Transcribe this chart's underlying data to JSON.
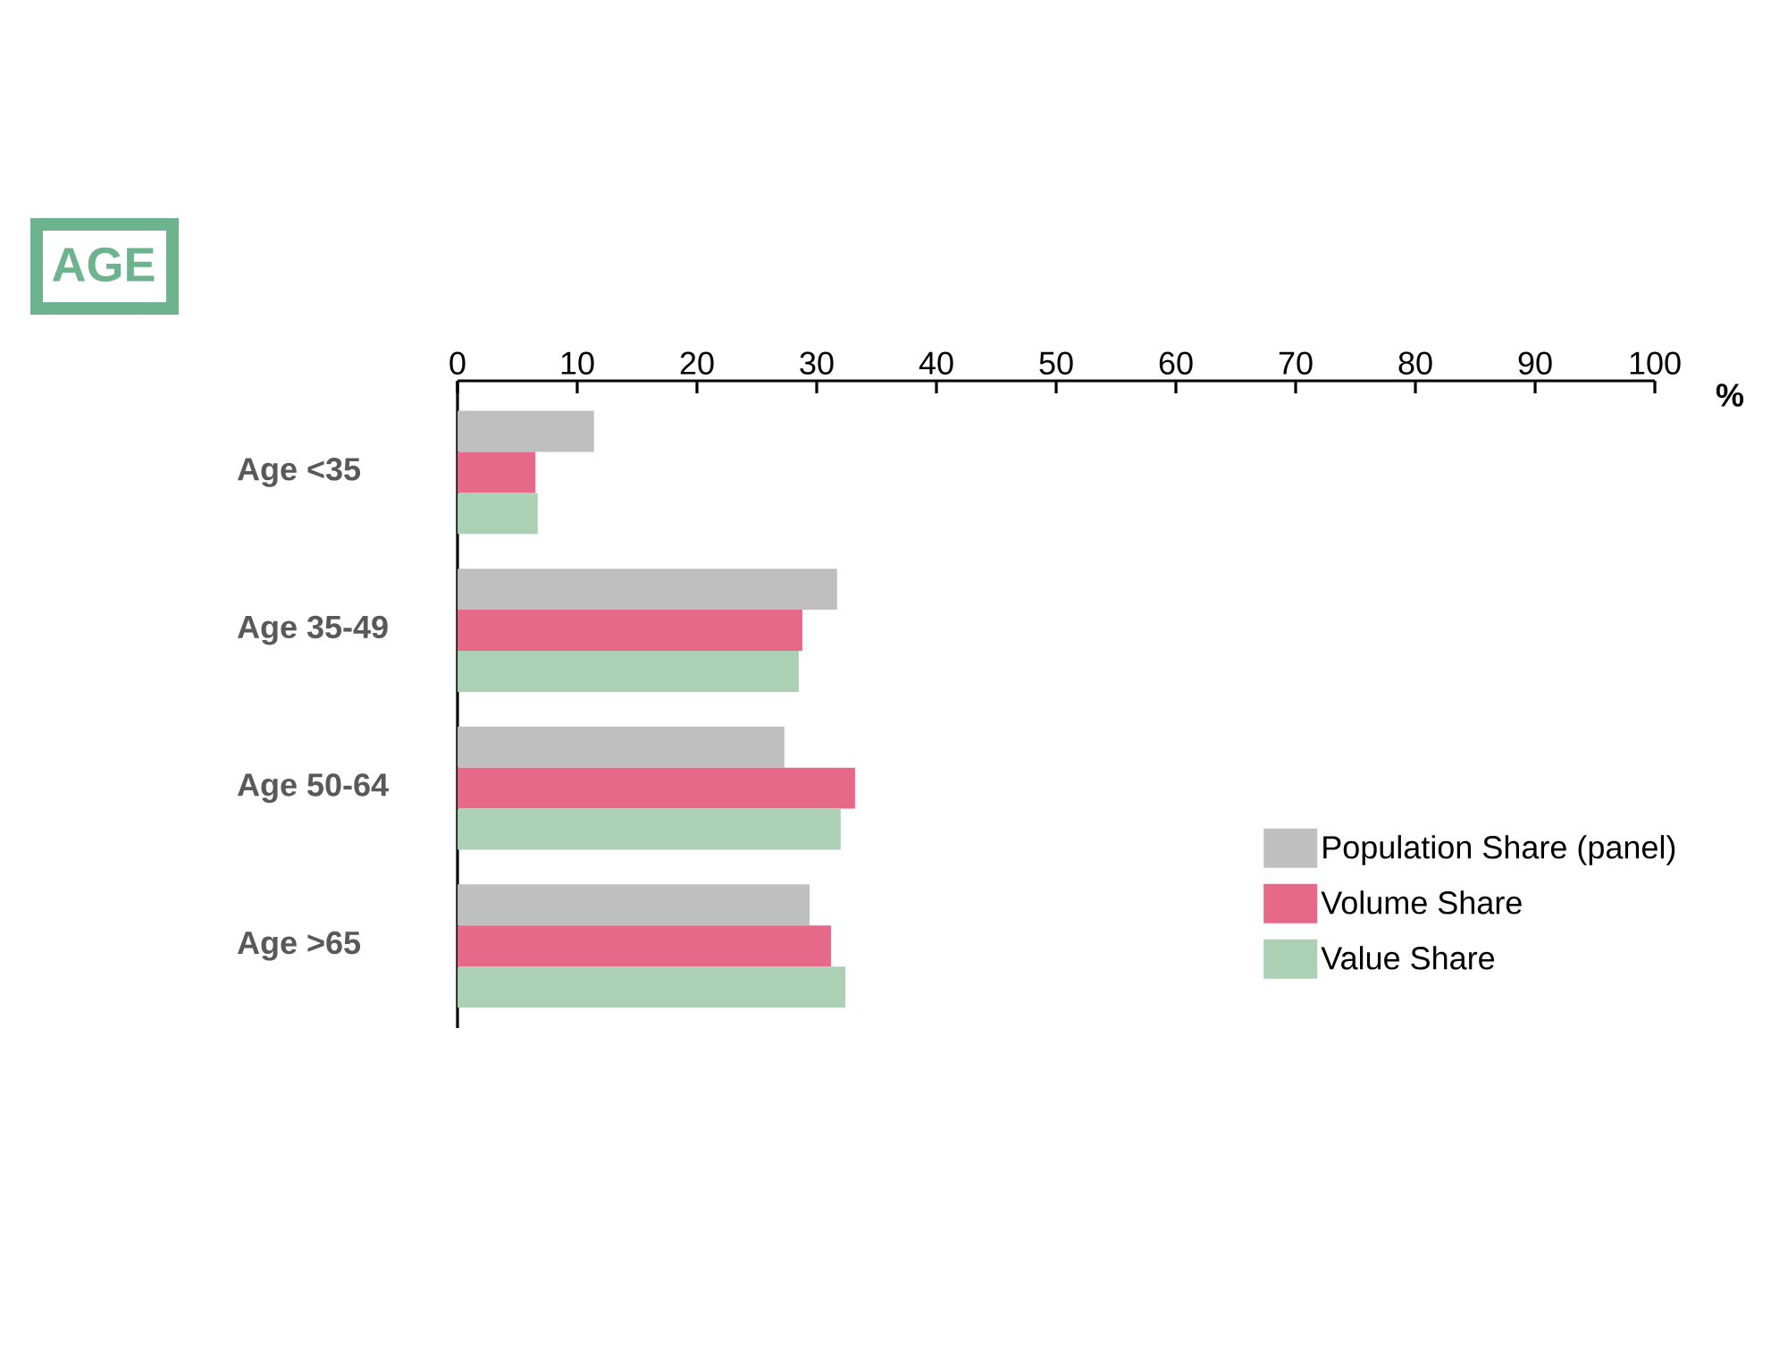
{
  "chart_data": {
    "type": "bar",
    "orientation": "horizontal",
    "title": "AGE",
    "xlabel": "%",
    "categories": [
      "Age <35",
      "Age 35-49",
      "Age 50-64",
      "Age >65"
    ],
    "series": [
      {
        "name": "Population Share (panel)",
        "color": "#bfbfbf",
        "values": [
          11.4,
          31.7,
          27.3,
          29.4
        ]
      },
      {
        "name": "Volume Share",
        "color": "#e6698a",
        "values": [
          6.5,
          28.8,
          33.2,
          31.2
        ]
      },
      {
        "name": "Value Share",
        "color": "#abd0b3",
        "values": [
          6.7,
          28.5,
          32.0,
          32.4
        ]
      }
    ],
    "xlim": [
      0,
      100
    ],
    "xticks": [
      0,
      10,
      20,
      30,
      40,
      50,
      60,
      70,
      80,
      90,
      100
    ],
    "legend": "bottom right"
  }
}
